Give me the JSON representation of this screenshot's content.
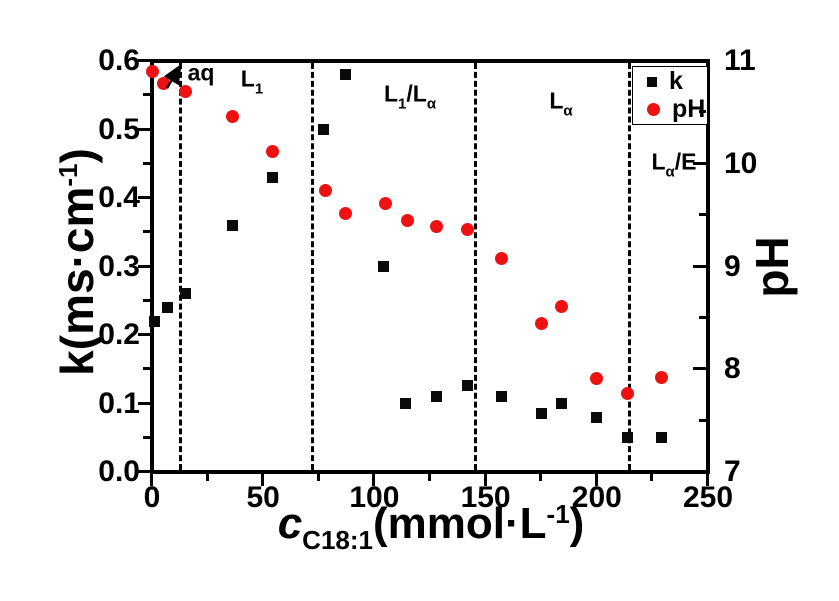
{
  "figure": {
    "background": "#ffffff",
    "axis_color": "#000000"
  },
  "legend": {
    "k_label": "k",
    "ph_label": "pH"
  },
  "labels": {
    "y_left": {
      "pre": "k(ms·cm",
      "sup": "-1",
      "post": ")"
    },
    "y_right": "pH",
    "x": {
      "var": "c",
      "sub": "C18:1",
      "mid": "(mmol·L",
      "sup": "-1",
      "post": ")"
    }
  },
  "regions": {
    "aq": "aq",
    "l1": {
      "main": "L",
      "sub": "1"
    },
    "l1la": {
      "m1": "L",
      "s1": "1",
      "m2": "/L",
      "s2": "α"
    },
    "la": {
      "main": "L",
      "sub": "α"
    },
    "lae": {
      "m1": "L",
      "s1": "α",
      "m2": "/E"
    }
  },
  "chart_data": {
    "type": "scatter",
    "title": "",
    "x_axis": {
      "label": "c_C18:1 (mmol·L^-1)",
      "min": 0,
      "max": 250,
      "major_ticks": [
        0,
        50,
        100,
        150,
        200,
        250
      ],
      "minor_ticks": [
        25,
        75,
        125,
        175,
        225
      ]
    },
    "y_left_axis": {
      "label": "k (ms·cm^-1)",
      "min": 0,
      "max": 0.6,
      "major_ticks": [
        0.0,
        0.1,
        0.2,
        0.3,
        0.4,
        0.5,
        0.6
      ],
      "minor_ticks": [
        0.05,
        0.15,
        0.25,
        0.35,
        0.45,
        0.55
      ]
    },
    "y_right_axis": {
      "label": "pH",
      "min": 7,
      "max": 11,
      "major_ticks": [
        7,
        8,
        9,
        10,
        11
      ],
      "minor_ticks": [
        7.5,
        8.5,
        9.5,
        10.5
      ]
    },
    "phase_boundaries_x": [
      12.6,
      72.3,
      145.5,
      214.5
    ],
    "region_labels": [
      "aq",
      "L1",
      "L1/La",
      "La",
      "La/E"
    ],
    "legend_position": "top-right-inside",
    "grid": false,
    "series": [
      {
        "name": "k",
        "marker": "square",
        "color": "#0a0a0a",
        "axis": "left",
        "points": [
          [
            1,
            0.22
          ],
          [
            7,
            0.24
          ],
          [
            15,
            0.26
          ],
          [
            36,
            0.36
          ],
          [
            54,
            0.43
          ],
          [
            77,
            0.5
          ],
          [
            87,
            0.58
          ],
          [
            104,
            0.3
          ],
          [
            114,
            0.1
          ],
          [
            128,
            0.11
          ],
          [
            142,
            0.126
          ],
          [
            157,
            0.11
          ],
          [
            175,
            0.086
          ],
          [
            184,
            0.1
          ],
          [
            200,
            0.08
          ],
          [
            214,
            0.051
          ],
          [
            229,
            0.051
          ]
        ]
      },
      {
        "name": "pH",
        "marker": "circle",
        "color": "#ee1111",
        "axis": "right",
        "points": [
          [
            0,
            10.9
          ],
          [
            5,
            10.78
          ],
          [
            15,
            10.7
          ],
          [
            36,
            10.46
          ],
          [
            54,
            10.12
          ],
          [
            78,
            9.74
          ],
          [
            87,
            9.52
          ],
          [
            105,
            9.61
          ],
          [
            115,
            9.45
          ],
          [
            128,
            9.39
          ],
          [
            142,
            9.36
          ],
          [
            157,
            9.08
          ],
          [
            175,
            8.45
          ],
          [
            184,
            8.61
          ],
          [
            200,
            7.91
          ],
          [
            214,
            7.76
          ],
          [
            229,
            7.92
          ]
        ]
      }
    ]
  }
}
